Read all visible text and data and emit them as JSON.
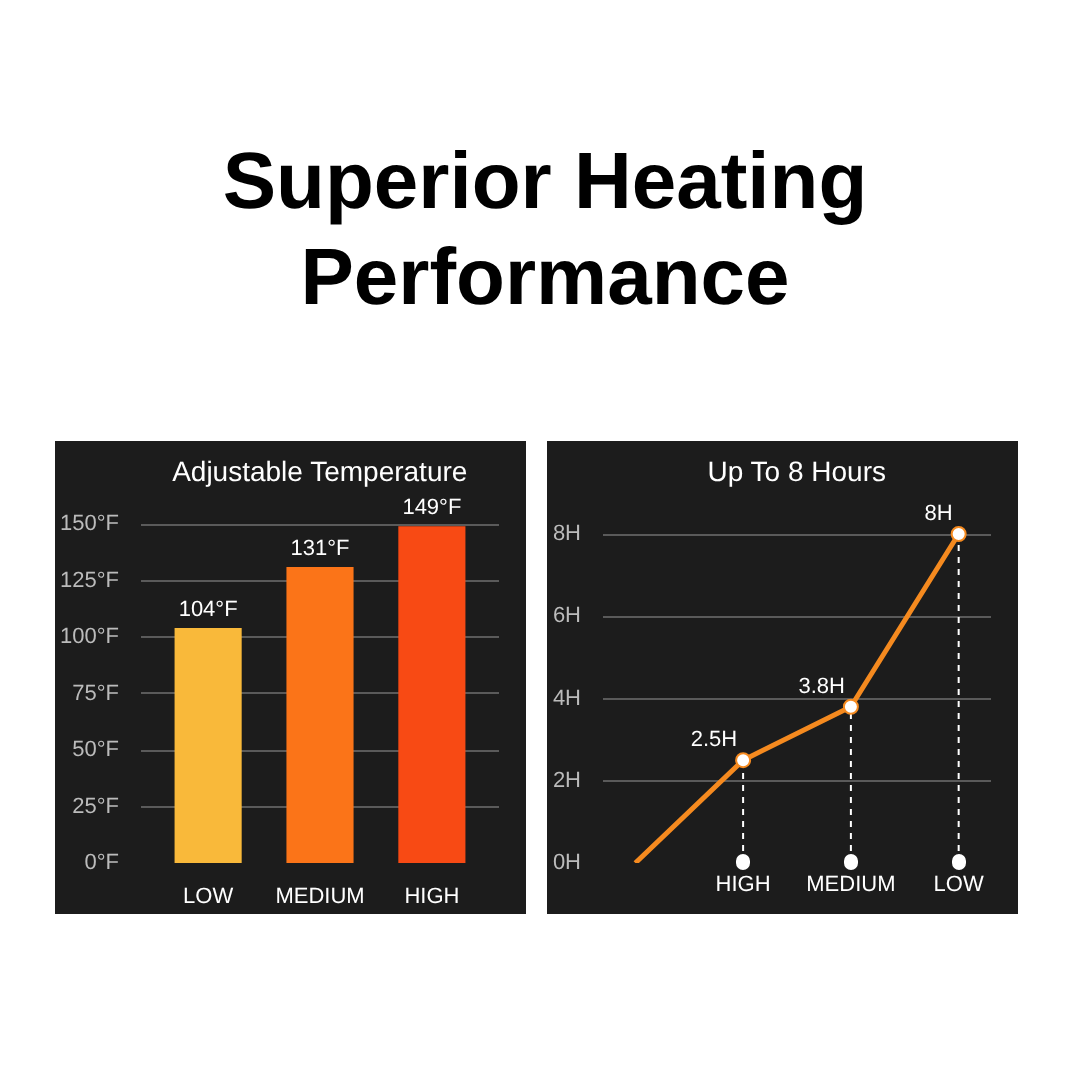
{
  "chart_data": [
    {
      "type": "other",
      "title": "Superior Heating Performance"
    },
    {
      "type": "bar",
      "title": "Adjustable Temperature",
      "categories": [
        "LOW",
        "MEDIUM",
        "HIGH"
      ],
      "values": [
        104,
        131,
        149
      ],
      "colors": [
        "#f9b93a",
        "#fb7418",
        "#f84a14"
      ],
      "value_labels": [
        "104°F",
        "131°F",
        "149°F"
      ],
      "ylim": [
        0,
        162
      ],
      "yticks": [
        {
          "value": 0,
          "label": "0°F"
        },
        {
          "value": 25,
          "label": "25°F"
        },
        {
          "value": 50,
          "label": "50°F"
        },
        {
          "value": 75,
          "label": "75°F"
        },
        {
          "value": 100,
          "label": "100°F"
        },
        {
          "value": 125,
          "label": "125°F"
        },
        {
          "value": 150,
          "label": "150°F"
        }
      ],
      "grid": "y"
    },
    {
      "type": "line",
      "title": "Up To 8 Hours",
      "categories": [
        null,
        "HIGH",
        "MEDIUM",
        "LOW"
      ],
      "series": [
        {
          "type": "lollipop",
          "color": "#ffffff",
          "values": [
            null,
            2.5,
            3.8,
            8
          ],
          "line_style": "dashed",
          "marker": "circle"
        },
        {
          "type": "line",
          "color": "#f58a1f",
          "values": [
            0,
            2.5,
            3.8,
            8
          ],
          "value_labels": [
            null,
            "2.5H",
            "3.8H",
            "8H"
          ]
        }
      ],
      "ylim": [
        0,
        8.9
      ],
      "yticks": [
        {
          "value": 0,
          "label": "0H"
        },
        {
          "value": 2,
          "label": "2H"
        },
        {
          "value": 4,
          "label": "4H"
        },
        {
          "value": 6,
          "label": "6H"
        },
        {
          "value": 8,
          "label": "8H"
        }
      ],
      "grid": "y",
      "line_style": "solid"
    }
  ]
}
